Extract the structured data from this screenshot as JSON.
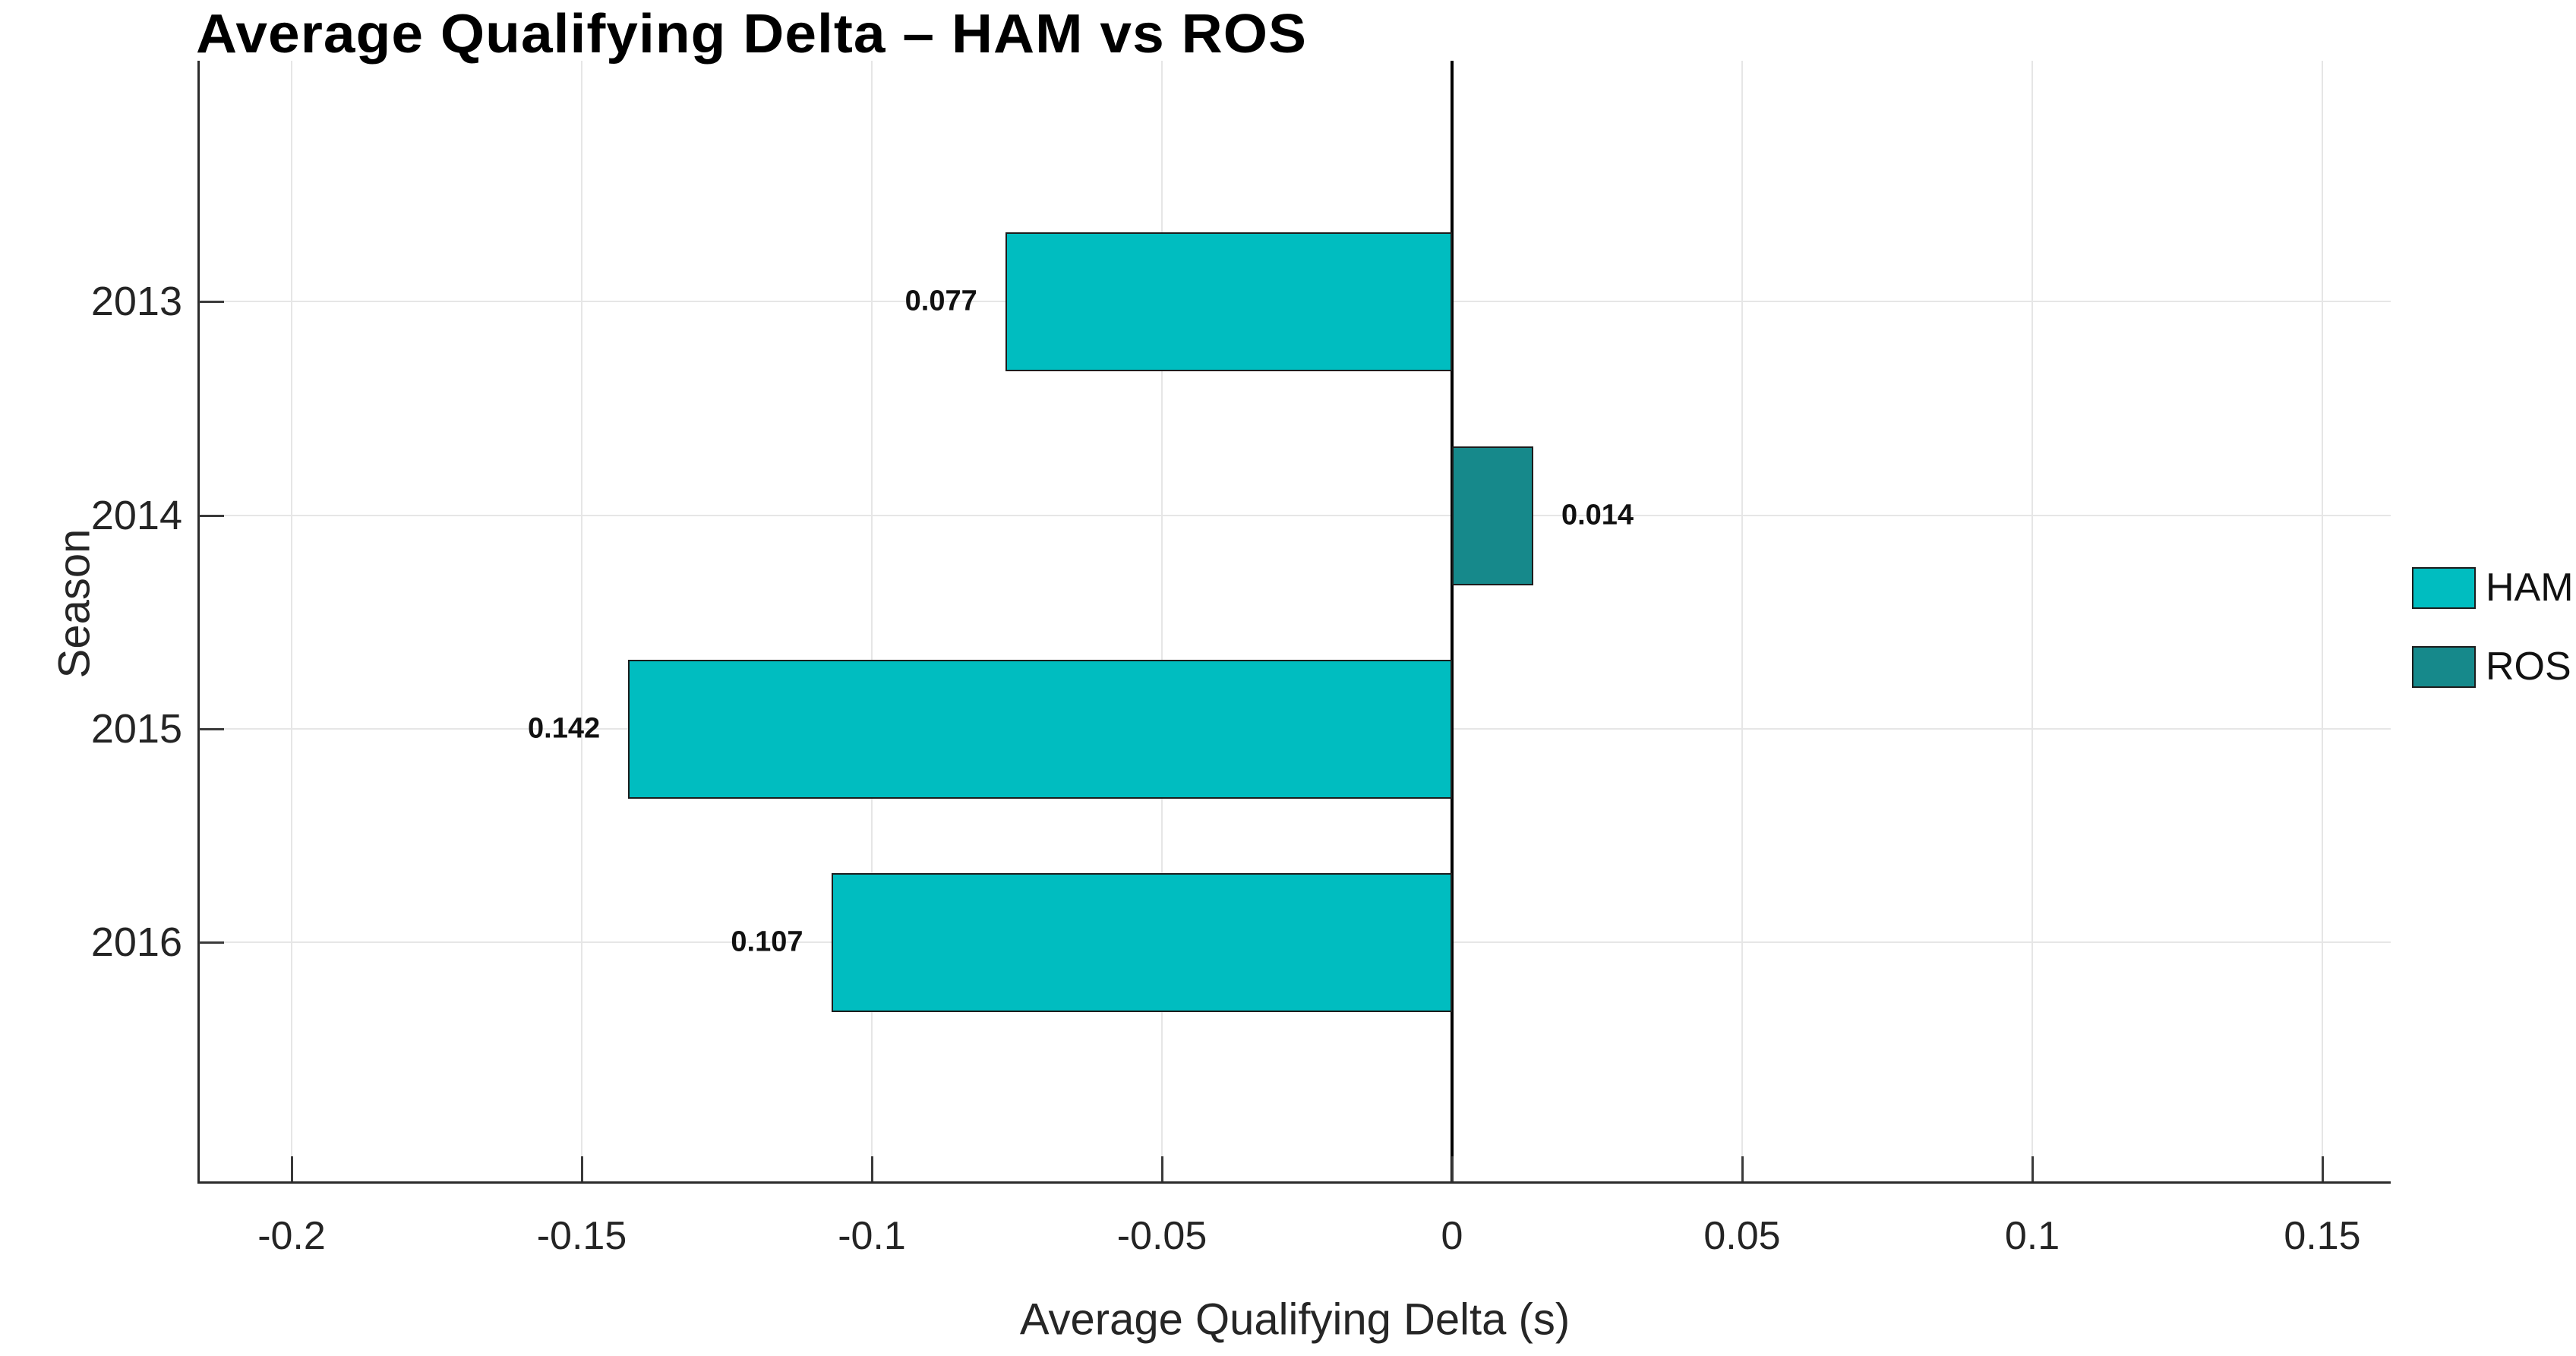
{
  "chart_data": {
    "type": "bar",
    "orientation": "horizontal",
    "title": "Average Qualifying Delta – HAM vs ROS",
    "xlabel": "Average Qualifying Delta (s)",
    "ylabel": "Season",
    "categories": [
      "2013",
      "2014",
      "2015",
      "2016"
    ],
    "series": [
      {
        "name": "HAM",
        "color": "#00BDC0",
        "values": [
          -0.077,
          null,
          -0.142,
          -0.107
        ]
      },
      {
        "name": "ROS",
        "color": "#16898B",
        "values": [
          null,
          0.014,
          null,
          null
        ]
      }
    ],
    "bars": [
      {
        "season": "2013",
        "driver": "HAM",
        "value": -0.077,
        "label": "0.077"
      },
      {
        "season": "2014",
        "driver": "ROS",
        "value": 0.014,
        "label": "0.014"
      },
      {
        "season": "2015",
        "driver": "HAM",
        "value": -0.142,
        "label": "0.142"
      },
      {
        "season": "2016",
        "driver": "HAM",
        "value": -0.107,
        "label": "0.107"
      }
    ],
    "x_ticks": [
      {
        "label": "-0.2",
        "value": -0.2
      },
      {
        "label": "-0.15",
        "value": -0.15
      },
      {
        "label": "-0.1",
        "value": -0.1
      },
      {
        "label": "-0.05",
        "value": -0.05
      },
      {
        "label": "0",
        "value": 0
      },
      {
        "label": "0.05",
        "value": 0.05
      },
      {
        "label": "0.1",
        "value": 0.1
      },
      {
        "label": "0.15",
        "value": 0.15
      }
    ],
    "xlim": [
      -0.216,
      0.162
    ],
    "grid": true,
    "zero_line": true,
    "legend": {
      "position": "right",
      "entries": [
        {
          "label": "HAM",
          "color": "#00BDC0"
        },
        {
          "label": "ROS",
          "color": "#16898B"
        }
      ]
    },
    "colors": {
      "background": "#ffffff",
      "gridline": "#e6e6e6",
      "axis": "#2b2b2b",
      "zero_line": "#000000"
    }
  }
}
